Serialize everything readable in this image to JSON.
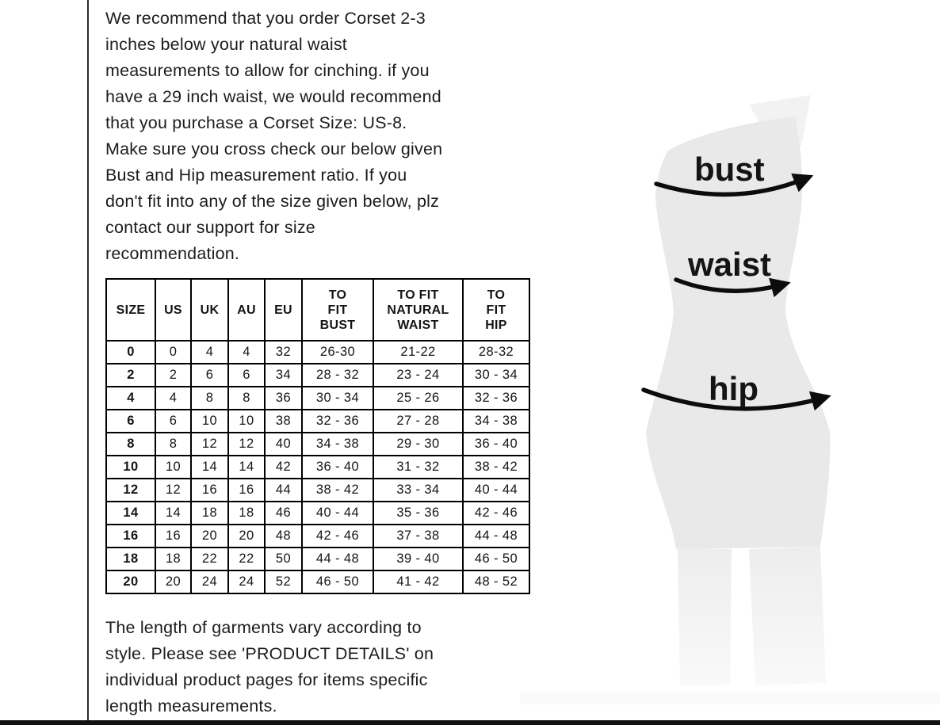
{
  "intro": {
    "text": "We recommend that you order Corset 2-3\ninches below your natural waist\nmeasurements to allow for cinching. if you\nhave a 29 inch waist, we would recommend\nthat you purchase a Corset Size: US-8.\nMake sure you cross check our below given\nBust and Hip measurement ratio. If you\ndon't fit into any of the size given below, plz\ncontact our support for size\nrecommendation."
  },
  "size_table": {
    "headers": [
      "SIZE",
      "US",
      "UK",
      "AU",
      "EU",
      "TO\nFIT\nBUST",
      "TO FIT\nNATURAL\nWAIST",
      "TO\nFIT\nHIP"
    ],
    "rows": [
      [
        "0",
        "0",
        "4",
        "4",
        "32",
        "26-30",
        "21-22",
        "28-32"
      ],
      [
        "2",
        "2",
        "6",
        "6",
        "34",
        "28 - 32",
        "23 - 24",
        "30 - 34"
      ],
      [
        "4",
        "4",
        "8",
        "8",
        "36",
        "30 - 34",
        "25 - 26",
        "32 - 36"
      ],
      [
        "6",
        "6",
        "10",
        "10",
        "38",
        "32 - 36",
        "27 - 28",
        "34 - 38"
      ],
      [
        "8",
        "8",
        "12",
        "12",
        "40",
        "34 - 38",
        "29 - 30",
        "36 - 40"
      ],
      [
        "10",
        "10",
        "14",
        "14",
        "42",
        "36 - 40",
        "31 - 32",
        "38 - 42"
      ],
      [
        "12",
        "12",
        "16",
        "16",
        "44",
        "38 - 42",
        "33 - 34",
        "40 - 44"
      ],
      [
        "14",
        "14",
        "18",
        "18",
        "46",
        "40 - 44",
        "35 - 36",
        "42 - 46"
      ],
      [
        "16",
        "16",
        "20",
        "20",
        "48",
        "42 - 46",
        "37 - 38",
        "44 - 48"
      ],
      [
        "18",
        "18",
        "22",
        "22",
        "50",
        "44 - 48",
        "39 - 40",
        "46 - 50"
      ],
      [
        "20",
        "20",
        "24",
        "24",
        "52",
        "46 - 50",
        "41 - 42",
        "48 - 52"
      ]
    ]
  },
  "figure": {
    "bust_label": "bust",
    "waist_label": "waist",
    "hip_label": "hip"
  },
  "footer": {
    "text": "The length of garments vary according to\nstyle. Please see 'PRODUCT DETAILS'  on\nindividual product pages for items specific\nlength measurements."
  },
  "colors": {
    "body_fill": "#e9e9e9",
    "legs_fill": "#f0f0f0",
    "arrow": "#0c0c0c",
    "text": "#1c1c1c",
    "table_border": "#000000",
    "bottom_bar": "#121212"
  }
}
